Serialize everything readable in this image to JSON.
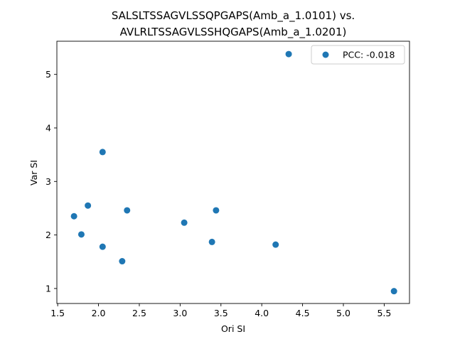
{
  "chart_data": {
    "type": "scatter",
    "title_lines": [
      "SALSLTSSAGVLSSQPGAPS(Amb_a_1.0101) vs.",
      "AVLRLTSSAGVLSSHQGAPS(Amb_a_1.0201)"
    ],
    "xlabel": "Ori SI",
    "ylabel": "Var SI",
    "xlim": [
      1.49,
      5.81
    ],
    "ylim": [
      0.72,
      5.62
    ],
    "xticks": [
      1.5,
      2.0,
      2.5,
      3.0,
      3.5,
      4.0,
      4.5,
      5.0,
      5.5
    ],
    "xtick_labels": [
      "1.5",
      "2.0",
      "2.5",
      "3.0",
      "3.5",
      "4.0",
      "4.5",
      "5.0",
      "5.5"
    ],
    "yticks": [
      1,
      2,
      3,
      4,
      5
    ],
    "ytick_labels": [
      "1",
      "2",
      "3",
      "4",
      "5"
    ],
    "grid": false,
    "legend_position": "top-right",
    "series": [
      {
        "name": "PCC: -0.018",
        "color": "#1f77b4",
        "x": [
          1.7,
          1.79,
          1.87,
          2.05,
          2.05,
          2.29,
          2.35,
          3.05,
          3.39,
          3.44,
          4.17,
          4.33,
          5.62
        ],
        "y": [
          2.35,
          2.01,
          2.55,
          3.55,
          1.78,
          1.51,
          2.46,
          2.23,
          1.87,
          2.46,
          1.82,
          5.38,
          0.95
        ]
      }
    ]
  }
}
